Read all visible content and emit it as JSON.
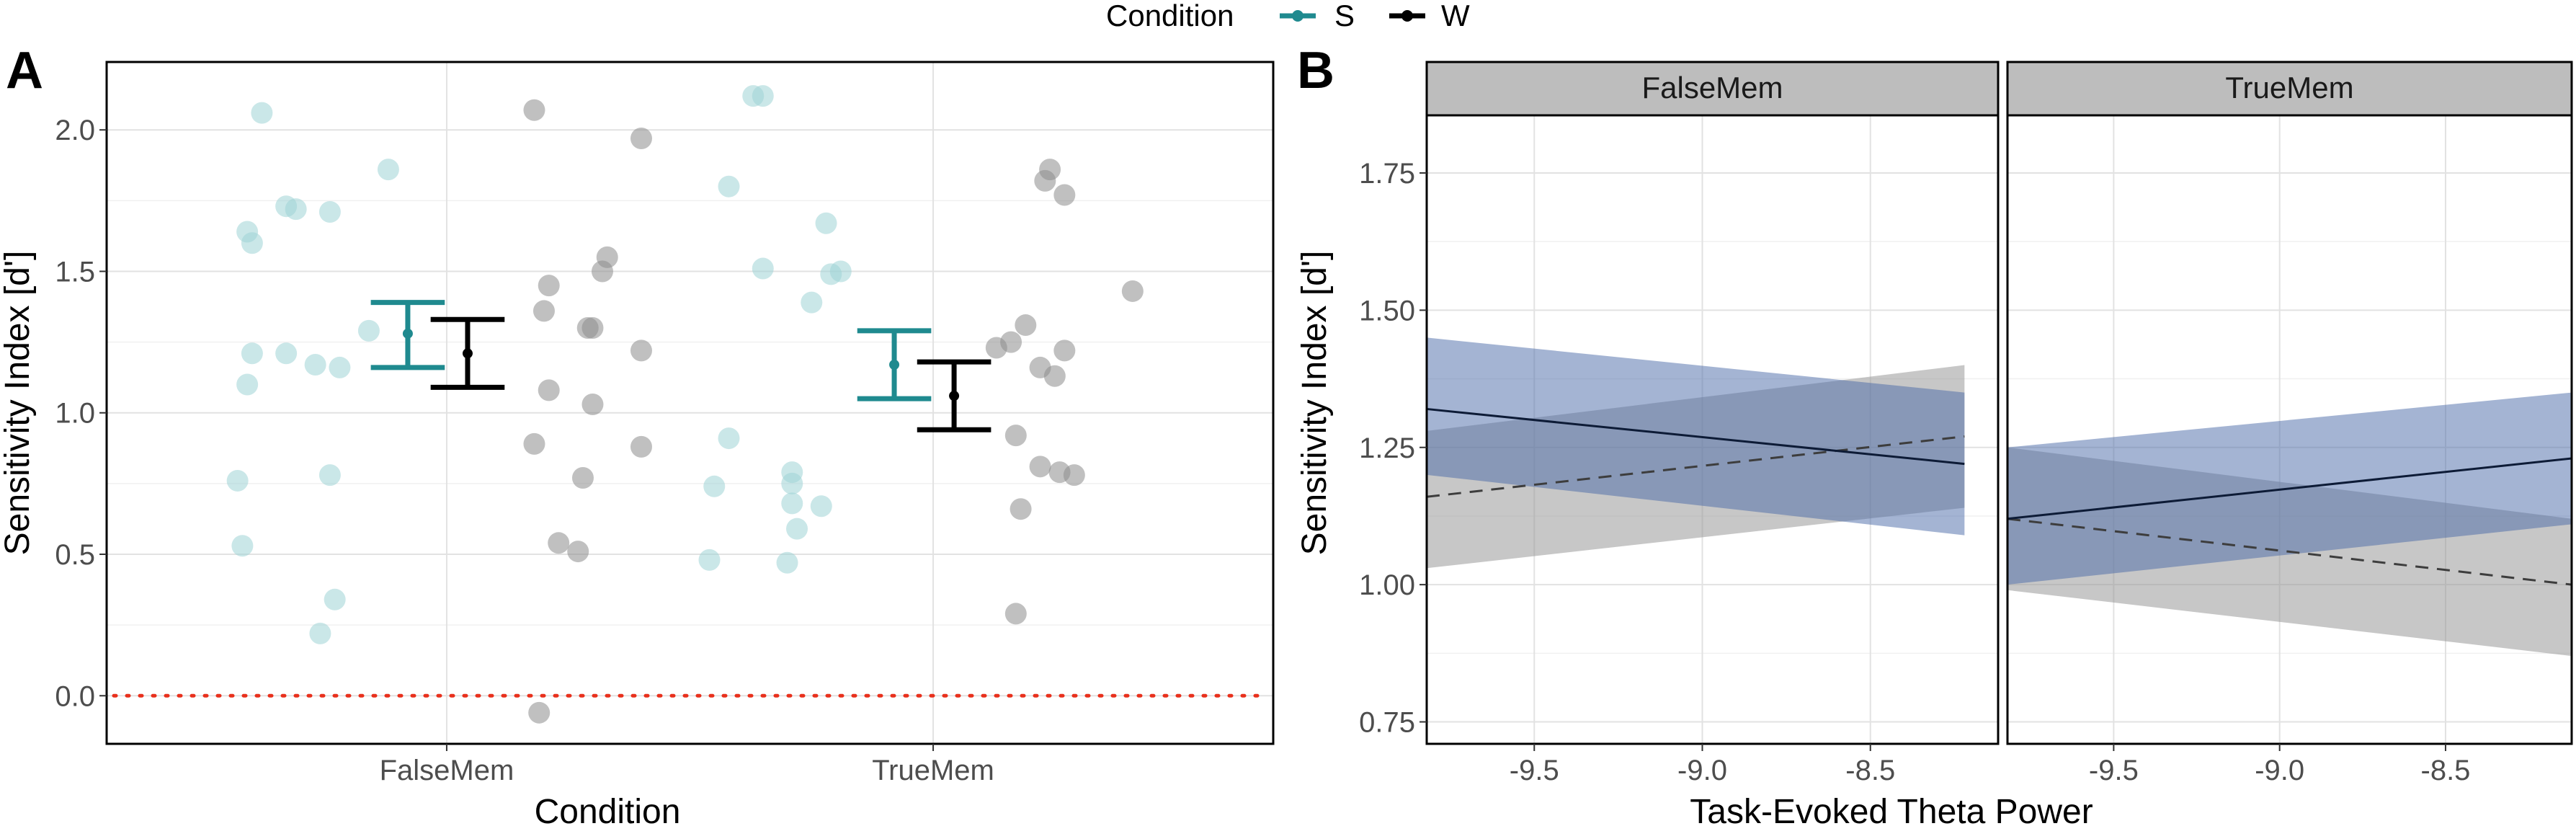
{
  "legend": {
    "title": "Condition",
    "items": [
      {
        "label": "S",
        "color": "#1f8a8f"
      },
      {
        "label": "W",
        "color": "#000000"
      }
    ]
  },
  "chart_data": [
    {
      "type": "scatter",
      "panel_label": "A",
      "title": "",
      "xlabel": "Condition",
      "ylabel": "Sensitivity Index [d']",
      "categories": [
        "FalseMem",
        "TrueMem"
      ],
      "ylim": [
        -0.17,
        2.24
      ],
      "yticks": [
        "0.0",
        "0.5",
        "1.0",
        "1.5",
        "2.0"
      ],
      "reference_line": {
        "y": 0.0,
        "color": "#e8301c",
        "style": "dotted"
      },
      "colors": {
        "S": "#1f8a8f",
        "W": "#000000",
        "S_points": "#9fd3d6",
        "W_points": "#8c8c8c"
      },
      "series": [
        {
          "name": "S",
          "points": [
            {
              "category": "FalseMem",
              "offset": -0.38,
              "y": 2.06
            },
            {
              "category": "FalseMem",
              "offset": -0.12,
              "y": 1.86
            },
            {
              "category": "FalseMem",
              "offset": -0.33,
              "y": 1.73
            },
            {
              "category": "FalseMem",
              "offset": -0.31,
              "y": 1.72
            },
            {
              "category": "FalseMem",
              "offset": -0.24,
              "y": 1.71
            },
            {
              "category": "FalseMem",
              "offset": -0.41,
              "y": 1.64
            },
            {
              "category": "FalseMem",
              "offset": -0.4,
              "y": 1.6
            },
            {
              "category": "FalseMem",
              "offset": -0.16,
              "y": 1.29
            },
            {
              "category": "FalseMem",
              "offset": -0.4,
              "y": 1.21
            },
            {
              "category": "FalseMem",
              "offset": -0.33,
              "y": 1.21
            },
            {
              "category": "FalseMem",
              "offset": -0.27,
              "y": 1.17
            },
            {
              "category": "FalseMem",
              "offset": -0.22,
              "y": 1.16
            },
            {
              "category": "FalseMem",
              "offset": -0.41,
              "y": 1.1
            },
            {
              "category": "FalseMem",
              "offset": -0.24,
              "y": 0.78
            },
            {
              "category": "FalseMem",
              "offset": -0.43,
              "y": 0.76
            },
            {
              "category": "FalseMem",
              "offset": -0.42,
              "y": 0.53
            },
            {
              "category": "FalseMem",
              "offset": -0.23,
              "y": 0.34
            },
            {
              "category": "FalseMem",
              "offset": -0.26,
              "y": 0.22
            },
            {
              "category": "TrueMem",
              "offset": -0.37,
              "y": 2.12
            },
            {
              "category": "TrueMem",
              "offset": -0.35,
              "y": 2.12
            },
            {
              "category": "TrueMem",
              "offset": -0.42,
              "y": 1.8
            },
            {
              "category": "TrueMem",
              "offset": -0.22,
              "y": 1.67
            },
            {
              "category": "TrueMem",
              "offset": -0.35,
              "y": 1.51
            },
            {
              "category": "TrueMem",
              "offset": -0.19,
              "y": 1.5
            },
            {
              "category": "TrueMem",
              "offset": -0.21,
              "y": 1.49
            },
            {
              "category": "TrueMem",
              "offset": -0.25,
              "y": 1.39
            },
            {
              "category": "TrueMem",
              "offset": -0.42,
              "y": 0.91
            },
            {
              "category": "TrueMem",
              "offset": -0.29,
              "y": 0.79
            },
            {
              "category": "TrueMem",
              "offset": -0.29,
              "y": 0.75
            },
            {
              "category": "TrueMem",
              "offset": -0.45,
              "y": 0.74
            },
            {
              "category": "TrueMem",
              "offset": -0.29,
              "y": 0.68
            },
            {
              "category": "TrueMem",
              "offset": -0.23,
              "y": 0.67
            },
            {
              "category": "TrueMem",
              "offset": -0.28,
              "y": 0.59
            },
            {
              "category": "TrueMem",
              "offset": -0.46,
              "y": 0.48
            },
            {
              "category": "TrueMem",
              "offset": -0.3,
              "y": 0.47
            }
          ],
          "summary": [
            {
              "category": "FalseMem",
              "mean": 1.28,
              "lower": 1.16,
              "upper": 1.39
            },
            {
              "category": "TrueMem",
              "mean": 1.17,
              "lower": 1.05,
              "upper": 1.29
            }
          ]
        },
        {
          "name": "W",
          "points": [
            {
              "category": "FalseMem",
              "offset": 0.18,
              "y": 2.07
            },
            {
              "category": "FalseMem",
              "offset": 0.4,
              "y": 1.97
            },
            {
              "category": "FalseMem",
              "offset": 0.33,
              "y": 1.55
            },
            {
              "category": "FalseMem",
              "offset": 0.32,
              "y": 1.5
            },
            {
              "category": "FalseMem",
              "offset": 0.21,
              "y": 1.45
            },
            {
              "category": "FalseMem",
              "offset": 0.2,
              "y": 1.36
            },
            {
              "category": "FalseMem",
              "offset": 0.3,
              "y": 1.3
            },
            {
              "category": "FalseMem",
              "offset": 0.29,
              "y": 1.3
            },
            {
              "category": "FalseMem",
              "offset": 0.4,
              "y": 1.22
            },
            {
              "category": "FalseMem",
              "offset": 0.21,
              "y": 1.08
            },
            {
              "category": "FalseMem",
              "offset": 0.3,
              "y": 1.03
            },
            {
              "category": "FalseMem",
              "offset": 0.18,
              "y": 0.89
            },
            {
              "category": "FalseMem",
              "offset": 0.4,
              "y": 0.88
            },
            {
              "category": "FalseMem",
              "offset": 0.28,
              "y": 0.77
            },
            {
              "category": "FalseMem",
              "offset": 0.23,
              "y": 0.54
            },
            {
              "category": "FalseMem",
              "offset": 0.27,
              "y": 0.51
            },
            {
              "category": "FalseMem",
              "offset": 0.19,
              "y": -0.06
            },
            {
              "category": "TrueMem",
              "offset": 0.24,
              "y": 1.86
            },
            {
              "category": "TrueMem",
              "offset": 0.23,
              "y": 1.82
            },
            {
              "category": "TrueMem",
              "offset": 0.27,
              "y": 1.77
            },
            {
              "category": "TrueMem",
              "offset": 0.41,
              "y": 1.43
            },
            {
              "category": "TrueMem",
              "offset": 0.19,
              "y": 1.31
            },
            {
              "category": "TrueMem",
              "offset": 0.16,
              "y": 1.25
            },
            {
              "category": "TrueMem",
              "offset": 0.13,
              "y": 1.23
            },
            {
              "category": "TrueMem",
              "offset": 0.27,
              "y": 1.22
            },
            {
              "category": "TrueMem",
              "offset": 0.22,
              "y": 1.16
            },
            {
              "category": "TrueMem",
              "offset": 0.25,
              "y": 1.13
            },
            {
              "category": "TrueMem",
              "offset": 0.17,
              "y": 0.92
            },
            {
              "category": "TrueMem",
              "offset": 0.22,
              "y": 0.81
            },
            {
              "category": "TrueMem",
              "offset": 0.26,
              "y": 0.79
            },
            {
              "category": "TrueMem",
              "offset": 0.29,
              "y": 0.78
            },
            {
              "category": "TrueMem",
              "offset": 0.18,
              "y": 0.66
            },
            {
              "category": "TrueMem",
              "offset": 0.17,
              "y": 0.29
            }
          ],
          "summary": [
            {
              "category": "FalseMem",
              "mean": 1.21,
              "lower": 1.09,
              "upper": 1.33
            },
            {
              "category": "TrueMem",
              "mean": 1.06,
              "lower": 0.94,
              "upper": 1.18
            }
          ]
        }
      ]
    },
    {
      "type": "line",
      "panel_label": "B",
      "title": "",
      "xlabel": "Task-Evoked Theta Power",
      "ylabel": "Sensitivity Index [d']",
      "facets": [
        "FalseMem",
        "TrueMem"
      ],
      "xlim": [
        -9.82,
        -8.12
      ],
      "ylim": [
        0.71,
        1.855
      ],
      "xticks": [
        "-9.5",
        "-9.0",
        "-8.5"
      ],
      "yticks": [
        "0.75",
        "1.00",
        "1.25",
        "1.50",
        "1.75"
      ],
      "series": [
        {
          "name": "S",
          "line_color": "#0d1b36",
          "band_color": "#4a6aa8",
          "linetype": "solid",
          "facets": {
            "FalseMem": {
              "x": [
                -9.82,
                -8.22
              ],
              "y": [
                1.32,
                1.22
              ],
              "lower": [
                1.2,
                1.09
              ],
              "upper": [
                1.45,
                1.35
              ]
            },
            "TrueMem": {
              "x": [
                -9.82,
                -8.12
              ],
              "y": [
                1.12,
                1.23
              ],
              "lower": [
                1.0,
                1.11
              ],
              "upper": [
                1.25,
                1.35
              ]
            }
          }
        },
        {
          "name": "W",
          "line_color": "#3d3d3d",
          "band_color": "#8f8f8f",
          "linetype": "dashed",
          "facets": {
            "FalseMem": {
              "x": [
                -9.82,
                -8.22
              ],
              "y": [
                1.16,
                1.27
              ],
              "lower": [
                1.03,
                1.14
              ],
              "upper": [
                1.28,
                1.4
              ]
            },
            "TrueMem": {
              "x": [
                -9.82,
                -8.12
              ],
              "y": [
                1.12,
                1.0
              ],
              "lower": [
                0.99,
                0.87
              ],
              "upper": [
                1.25,
                1.12
              ]
            }
          }
        }
      ]
    }
  ]
}
